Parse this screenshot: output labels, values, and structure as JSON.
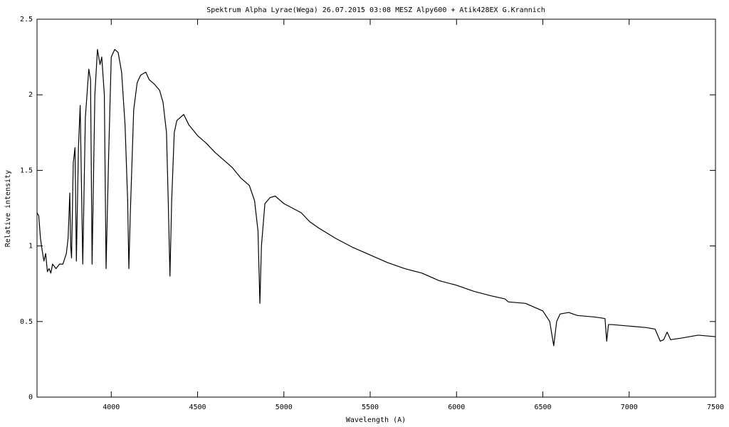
{
  "chart_data": {
    "type": "line",
    "title": "Spektrum Alpha Lyrae(Wega)  26.07.2015  03:08 MESZ  Alpy600 + Atik428EX   G.Krannich",
    "x_label": "Wavelength (A)",
    "y_label": "Relative intensity",
    "xlim": [
      3570,
      7500
    ],
    "xticks": [
      4000,
      4500,
      5000,
      5500,
      6000,
      6500,
      7000,
      7500
    ],
    "ylim": [
      0,
      2.5
    ],
    "yticks": [
      0,
      0.5,
      1,
      1.5,
      2,
      2.5
    ],
    "series": [
      {
        "color": "#000000",
        "x": [
          3570,
          3580,
          3590,
          3600,
          3610,
          3620,
          3630,
          3640,
          3650,
          3660,
          3680,
          3700,
          3720,
          3740,
          3750,
          3760,
          3765,
          3770,
          3780,
          3790,
          3798,
          3810,
          3820,
          3835,
          3850,
          3870,
          3880,
          3889,
          3905,
          3920,
          3935,
          3945,
          3960,
          3970,
          3985,
          4000,
          4020,
          4040,
          4060,
          4080,
          4095,
          4102,
          4110,
          4130,
          4150,
          4170,
          4200,
          4220,
          4250,
          4280,
          4300,
          4320,
          4330,
          4340,
          4350,
          4365,
          4380,
          4400,
          4420,
          4450,
          4500,
          4550,
          4600,
          4650,
          4700,
          4750,
          4800,
          4830,
          4850,
          4861,
          4870,
          4890,
          4920,
          4950,
          5000,
          5050,
          5100,
          5150,
          5200,
          5300,
          5400,
          5500,
          5600,
          5700,
          5800,
          5900,
          6000,
          6100,
          6200,
          6280,
          6300,
          6400,
          6500,
          6540,
          6563,
          6580,
          6600,
          6650,
          6700,
          6800,
          6860,
          6870,
          6880,
          6900,
          7000,
          7100,
          7150,
          7180,
          7200,
          7220,
          7240,
          7300,
          7400,
          7500
        ],
        "values": [
          1.22,
          1.2,
          1.05,
          0.97,
          0.9,
          0.95,
          0.83,
          0.85,
          0.82,
          0.88,
          0.85,
          0.88,
          0.88,
          0.95,
          1.05,
          1.35,
          1.0,
          0.92,
          1.55,
          1.65,
          0.9,
          1.65,
          1.93,
          0.88,
          1.85,
          2.17,
          2.1,
          0.88,
          2.0,
          2.3,
          2.2,
          2.25,
          2.0,
          0.85,
          1.6,
          2.25,
          2.3,
          2.28,
          2.15,
          1.8,
          1.3,
          0.85,
          1.2,
          1.9,
          2.08,
          2.13,
          2.15,
          2.1,
          2.07,
          2.03,
          1.95,
          1.75,
          1.3,
          0.8,
          1.3,
          1.75,
          1.83,
          1.85,
          1.87,
          1.8,
          1.73,
          1.68,
          1.62,
          1.57,
          1.52,
          1.45,
          1.4,
          1.3,
          1.1,
          0.62,
          1.0,
          1.28,
          1.32,
          1.33,
          1.28,
          1.25,
          1.22,
          1.16,
          1.12,
          1.05,
          0.99,
          0.94,
          0.89,
          0.85,
          0.82,
          0.77,
          0.74,
          0.7,
          0.67,
          0.65,
          0.63,
          0.62,
          0.57,
          0.5,
          0.34,
          0.5,
          0.55,
          0.56,
          0.54,
          0.53,
          0.52,
          0.37,
          0.48,
          0.48,
          0.47,
          0.46,
          0.45,
          0.37,
          0.38,
          0.43,
          0.38,
          0.39,
          0.41,
          0.4
        ]
      }
    ]
  }
}
